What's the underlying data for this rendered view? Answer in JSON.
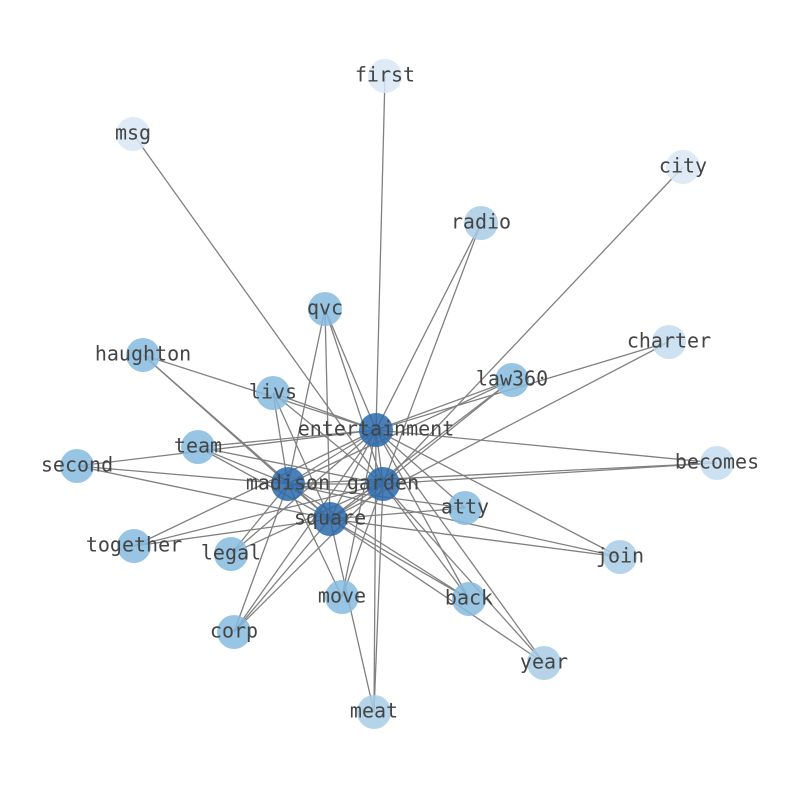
{
  "nodes": [
    {
      "label": "first"
    },
    {
      "label": "msg"
    },
    {
      "label": "city"
    },
    {
      "label": "radio"
    },
    {
      "label": "qvc"
    },
    {
      "label": "charter"
    },
    {
      "label": "haughton"
    },
    {
      "label": "law360"
    },
    {
      "label": "livs"
    },
    {
      "label": "entertainment"
    },
    {
      "label": "team"
    },
    {
      "label": "second"
    },
    {
      "label": "becomes"
    },
    {
      "label": "madison"
    },
    {
      "label": "garden"
    },
    {
      "label": "atty"
    },
    {
      "label": "square"
    },
    {
      "label": "together"
    },
    {
      "label": "legal"
    },
    {
      "label": "join"
    },
    {
      "label": "move"
    },
    {
      "label": "back"
    },
    {
      "label": "corp"
    },
    {
      "label": "year"
    },
    {
      "label": "meat"
    }
  ]
}
